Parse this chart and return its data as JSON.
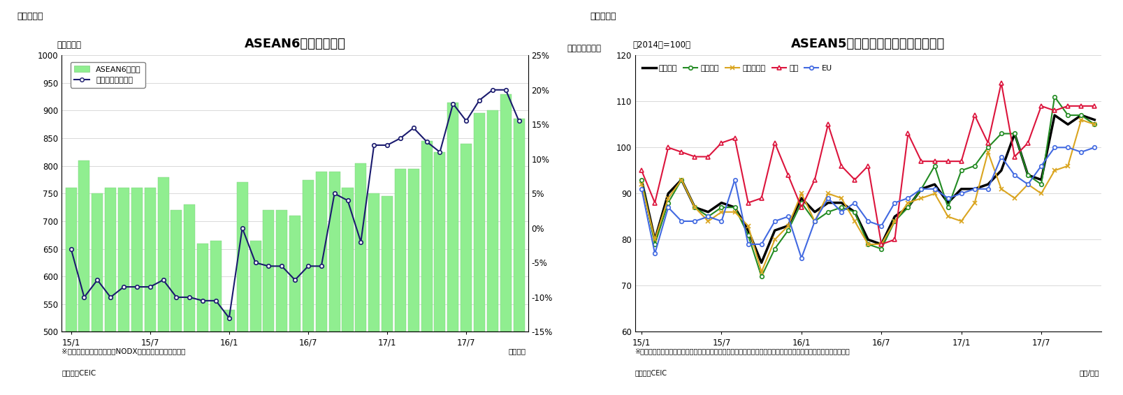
{
  "fig1": {
    "title": "ASEAN6カ国の輸出額",
    "suptitle": "（図表１）",
    "ylabel_left": "（億ドル）",
    "ylabel_right": "（前年同月比）",
    "note1": "※シンガポールの輸出額はNODX（石油と再輸出除く）。",
    "note2": "（資料）CEIC",
    "year_month_label": "（年月）",
    "ylim_left": [
      500,
      1000
    ],
    "ylim_right": [
      -0.15,
      0.25
    ],
    "yticks_left": [
      500,
      550,
      600,
      650,
      700,
      750,
      800,
      850,
      900,
      950,
      1000
    ],
    "yticks_right": [
      -0.15,
      -0.1,
      -0.05,
      0.0,
      0.05,
      0.1,
      0.15,
      0.2,
      0.25
    ],
    "ytick_labels_right": [
      "-15%",
      "-10%",
      "-5%",
      "0%",
      "5%",
      "10%",
      "15%",
      "20%",
      "25%"
    ],
    "bar_color": "#90EE90",
    "bar_edgecolor": "#7CCD7C",
    "line_color": "#1a1a6e",
    "xtick_labels": [
      "15/1",
      "15/7",
      "16/1",
      "16/7",
      "17/1",
      "17/7"
    ],
    "xtick_positions": [
      0,
      6,
      12,
      18,
      24,
      30
    ],
    "bar_values": [
      760,
      810,
      750,
      760,
      760,
      760,
      760,
      780,
      720,
      730,
      660,
      665,
      540,
      770,
      665,
      720,
      720,
      710,
      775,
      790,
      790,
      760,
      805,
      750,
      745,
      795,
      795,
      845,
      825,
      915,
      840,
      895,
      900,
      930,
      885
    ],
    "line_values": [
      -0.03,
      -0.1,
      -0.075,
      -0.1,
      -0.085,
      -0.085,
      -0.085,
      -0.075,
      -0.1,
      -0.1,
      -0.105,
      -0.105,
      -0.13,
      0.0,
      -0.05,
      -0.055,
      -0.055,
      -0.075,
      -0.055,
      -0.055,
      0.05,
      0.04,
      -0.02,
      0.12,
      0.12,
      0.13,
      0.145,
      0.125,
      0.11,
      0.18,
      0.155,
      0.185,
      0.2,
      0.2,
      0.155
    ],
    "legend_bar_label": "ASEAN6カ国計",
    "legend_line_label": "増加率（右目盛）"
  },
  "fig2": {
    "title": "ASEAN5カ国　仕向け地別の輸出動向",
    "suptitle": "（図表２）",
    "ylabel_left": "（2014年=100）",
    "year_month_label": "（年/月）",
    "note1": "※タイ、マレーシア、シンガポール（地場輸出）、インドネシア（非石油ガス輸出）、フィリピンの輸出より算出。",
    "note2": "（資料）CEIC",
    "ylim": [
      60,
      120
    ],
    "yticks": [
      60,
      70,
      80,
      90,
      100,
      110,
      120
    ],
    "xtick_labels": [
      "15/1",
      "15/7",
      "16/1",
      "16/7",
      "17/1",
      "17/7"
    ],
    "xtick_positions": [
      0,
      6,
      12,
      18,
      24,
      30
    ],
    "series": {
      "total": {
        "label": "輸出全体",
        "color": "#000000",
        "linewidth": 2.5,
        "marker": null,
        "markersize": 0,
        "values": [
          93,
          80,
          90,
          93,
          87,
          86,
          88,
          87,
          82,
          75,
          82,
          83,
          89,
          86,
          88,
          88,
          86,
          80,
          79,
          85,
          87,
          91,
          92,
          88,
          91,
          91,
          92,
          95,
          103,
          94,
          93,
          107,
          105,
          107,
          106
        ]
      },
      "east_asia": {
        "label": "東アジア",
        "color": "#228B22",
        "linewidth": 1.5,
        "marker": "o",
        "markersize": 4,
        "values": [
          93,
          79,
          88,
          93,
          87,
          85,
          87,
          87,
          81,
          72,
          78,
          82,
          88,
          84,
          86,
          87,
          86,
          79,
          78,
          84,
          87,
          91,
          96,
          87,
          95,
          96,
          100,
          103,
          103,
          94,
          92,
          111,
          107,
          107,
          105
        ]
      },
      "southeast_asia": {
        "label": "東南アジア",
        "color": "#DAA520",
        "linewidth": 1.5,
        "marker": "x",
        "markersize": 5,
        "values": [
          92,
          80,
          89,
          93,
          87,
          84,
          86,
          86,
          83,
          73,
          80,
          83,
          90,
          84,
          90,
          89,
          84,
          79,
          79,
          84,
          88,
          89,
          90,
          85,
          84,
          88,
          99,
          91,
          89,
          92,
          90,
          95,
          96,
          106,
          105
        ]
      },
      "north_america": {
        "label": "北米",
        "color": "#DC143C",
        "linewidth": 1.5,
        "marker": "^",
        "markersize": 4,
        "values": [
          95,
          88,
          100,
          99,
          98,
          98,
          101,
          102,
          88,
          89,
          101,
          94,
          87,
          93,
          105,
          96,
          93,
          96,
          79,
          80,
          103,
          97,
          97,
          97,
          97,
          107,
          101,
          114,
          98,
          101,
          109,
          108,
          109,
          109,
          109
        ]
      },
      "eu": {
        "label": "EU",
        "color": "#4169E1",
        "linewidth": 1.5,
        "marker": "o",
        "markersize": 4,
        "values": [
          91,
          77,
          87,
          84,
          84,
          85,
          84,
          93,
          79,
          79,
          84,
          85,
          76,
          84,
          89,
          86,
          88,
          84,
          83,
          88,
          89,
          91,
          91,
          89,
          90,
          91,
          91,
          98,
          94,
          92,
          96,
          100,
          100,
          99,
          100
        ]
      }
    }
  }
}
